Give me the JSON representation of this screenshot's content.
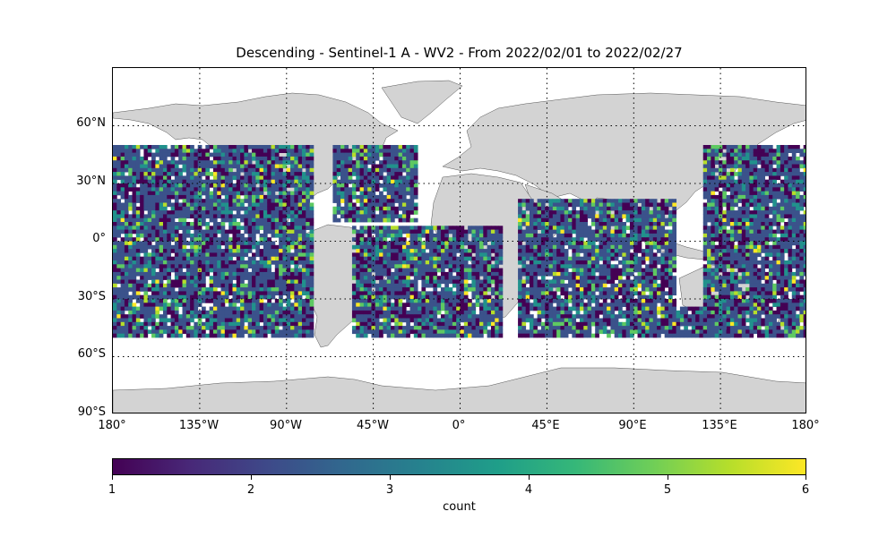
{
  "title": "Descending - Sentinel-1 A - WV2 - From 2022/02/01 to 2022/02/27",
  "map": {
    "projection": "PlateCarree",
    "lon_range": [
      -180,
      180
    ],
    "lat_range": [
      -90,
      90
    ],
    "land_color": "#d3d3d3",
    "gridlines": "dotted",
    "lat_ticks": [
      "60°N",
      "30°N",
      "0°",
      "30°S",
      "60°S",
      "90°S"
    ],
    "lon_ticks": [
      "180°",
      "135°W",
      "90°W",
      "45°W",
      "0°",
      "45°E",
      "90°E",
      "135°E",
      "180°"
    ]
  },
  "chart_data": {
    "type": "heatmap",
    "title": "Descending - Sentinel-1 A - WV2 - From 2022/02/01 to 2022/02/27",
    "colormap": "viridis",
    "colorbar": {
      "label": "count",
      "range": [
        1,
        6
      ],
      "ticks": [
        "1",
        "2",
        "3",
        "4",
        "5",
        "6"
      ]
    },
    "lat_coverage": [
      -50,
      50
    ],
    "grid_cell_deg": 2,
    "swaths": [
      {
        "region": "North/South Pacific",
        "lon": [
          -180,
          -76
        ],
        "lat": [
          -50,
          50
        ]
      },
      {
        "region": "North Atlantic",
        "lon": [
          -66,
          -22
        ],
        "lat": [
          10,
          50
        ]
      },
      {
        "region": "South Atlantic",
        "lon": [
          -56,
          22
        ],
        "lat": [
          -50,
          8
        ]
      },
      {
        "region": "Indian Ocean",
        "lon": [
          30,
          112
        ],
        "lat": [
          -50,
          22
        ]
      },
      {
        "region": "South of Australia",
        "lon": [
          112,
          140
        ],
        "lat": [
          -50,
          -34
        ]
      },
      {
        "region": "Western Pacific",
        "lon": [
          126,
          180
        ],
        "lat": [
          -50,
          50
        ]
      }
    ]
  }
}
